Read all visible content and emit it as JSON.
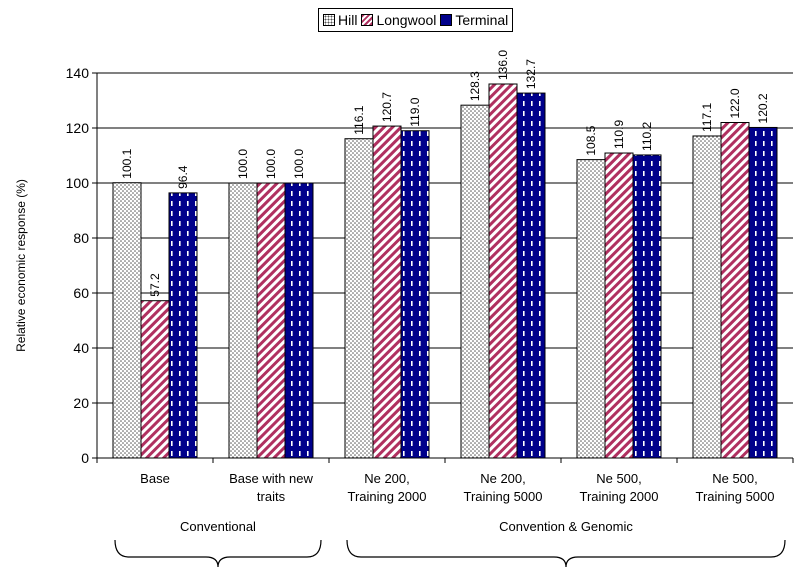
{
  "chart_data": {
    "type": "bar",
    "title": "",
    "ylabel": "Relative economic response (%)",
    "xlabel": "",
    "ylim": [
      0,
      140
    ],
    "yticks": [
      0,
      20,
      40,
      60,
      80,
      100,
      120,
      140
    ],
    "grid": true,
    "legend_position": "top-center",
    "categories": [
      [
        "Base"
      ],
      [
        "Base with new",
        "traits"
      ],
      [
        "Ne 200,",
        "Training 2000"
      ],
      [
        "Ne 200,",
        "Training 5000"
      ],
      [
        "Ne 500,",
        "Training 2000"
      ],
      [
        "Ne 500,",
        "Training 5000"
      ]
    ],
    "series": [
      {
        "name": "Hill",
        "color": "#ffffff",
        "pattern": "dotted",
        "values": [
          100.1,
          100.0,
          116.1,
          128.3,
          108.5,
          117.1
        ]
      },
      {
        "name": "Longwool",
        "color": "#b03060",
        "pattern": "diagonal-stripes",
        "values": [
          57.2,
          100.0,
          120.7,
          136.0,
          110.9,
          122.0
        ]
      },
      {
        "name": "Terminal",
        "color": "#00008b",
        "pattern": "dashed-vertical",
        "values": [
          96.4,
          100.0,
          119.0,
          132.7,
          110.2,
          120.2
        ]
      }
    ],
    "data_labels": [
      [
        "100.1",
        "100.0",
        "116.1",
        "128.3",
        "108.5",
        "117.1"
      ],
      [
        "57.2",
        "100.0",
        "120.7",
        "136.0",
        "110.9",
        "122.0"
      ],
      [
        "96.4",
        "100.0",
        "119.0",
        "132.7",
        "110.2",
        "120.2"
      ]
    ],
    "groups": [
      {
        "label": "Conventional",
        "categories": [
          0,
          1
        ]
      },
      {
        "label": "Convention & Genomic",
        "categories": [
          2,
          3,
          4,
          5
        ]
      }
    ]
  }
}
